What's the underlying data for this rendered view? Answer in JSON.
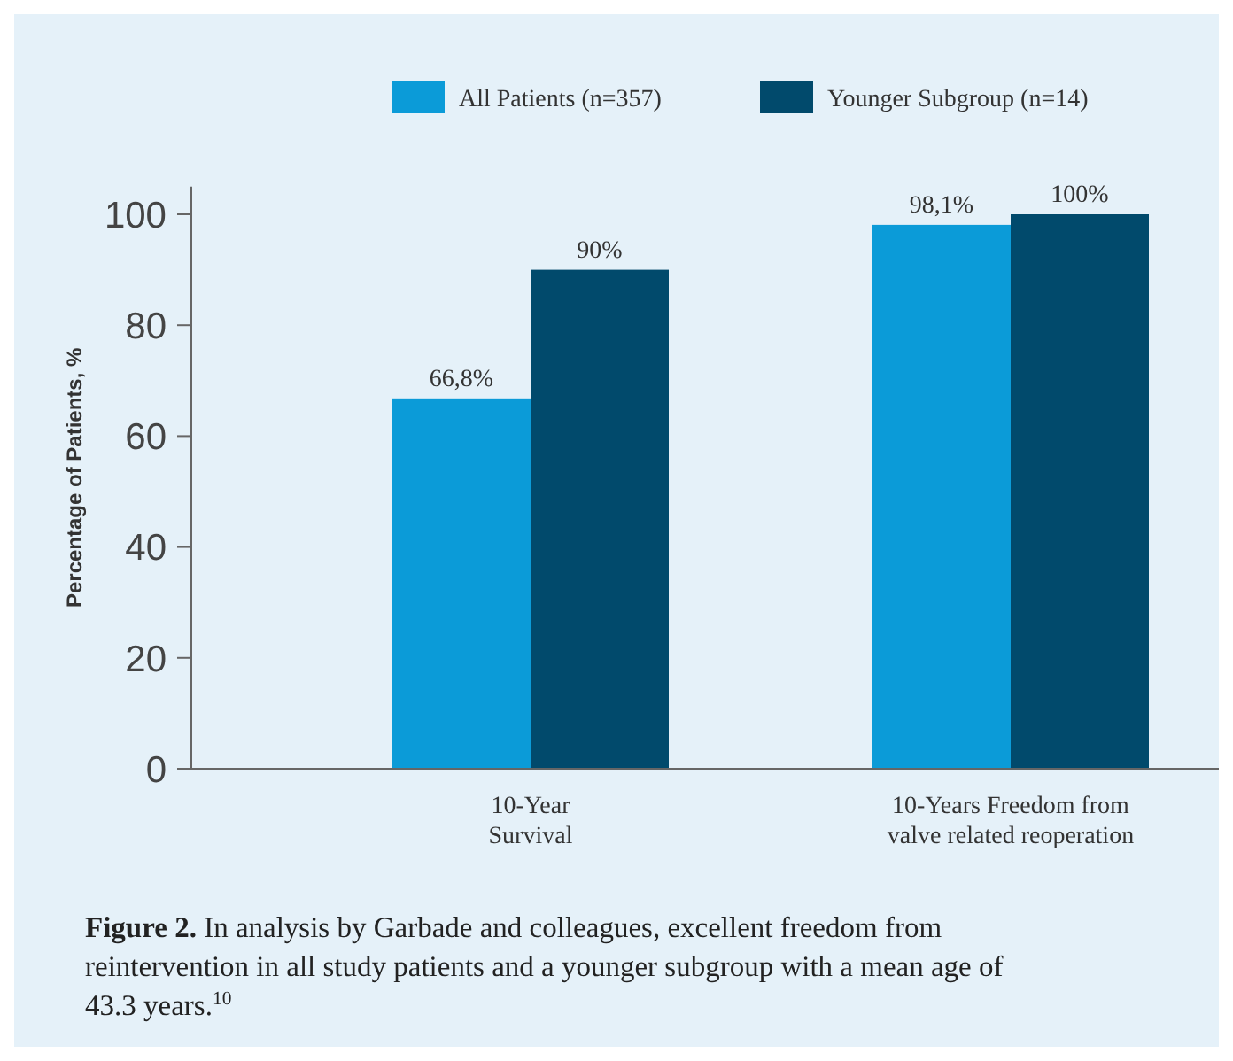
{
  "chart_data": {
    "type": "bar",
    "categories": [
      "10-Year\nSurvival",
      "10-Years Freedom from\nvalve related reoperation"
    ],
    "series": [
      {
        "name": "All Patients (n=357)",
        "color": "#0b9bd8",
        "values": [
          66.8,
          98.1
        ],
        "value_labels": [
          "66,8%",
          "98,1%"
        ]
      },
      {
        "name": "Younger Subgroup (n=14)",
        "color": "#014a6c",
        "values": [
          90,
          100
        ],
        "value_labels": [
          "90%",
          "100%"
        ]
      }
    ],
    "ylabel": "Percentage of Patients, %",
    "ylim": [
      0,
      105
    ],
    "yticks": [
      0,
      20,
      40,
      60,
      80,
      100
    ],
    "legend": "top",
    "annotations": [
      "Figure 2. In analysis by Garbade and colleagues, excellent freedom from reintervention in all study patients and a younger subgroup with a mean age of 43.3 years.$^{10}$"
    ]
  }
}
